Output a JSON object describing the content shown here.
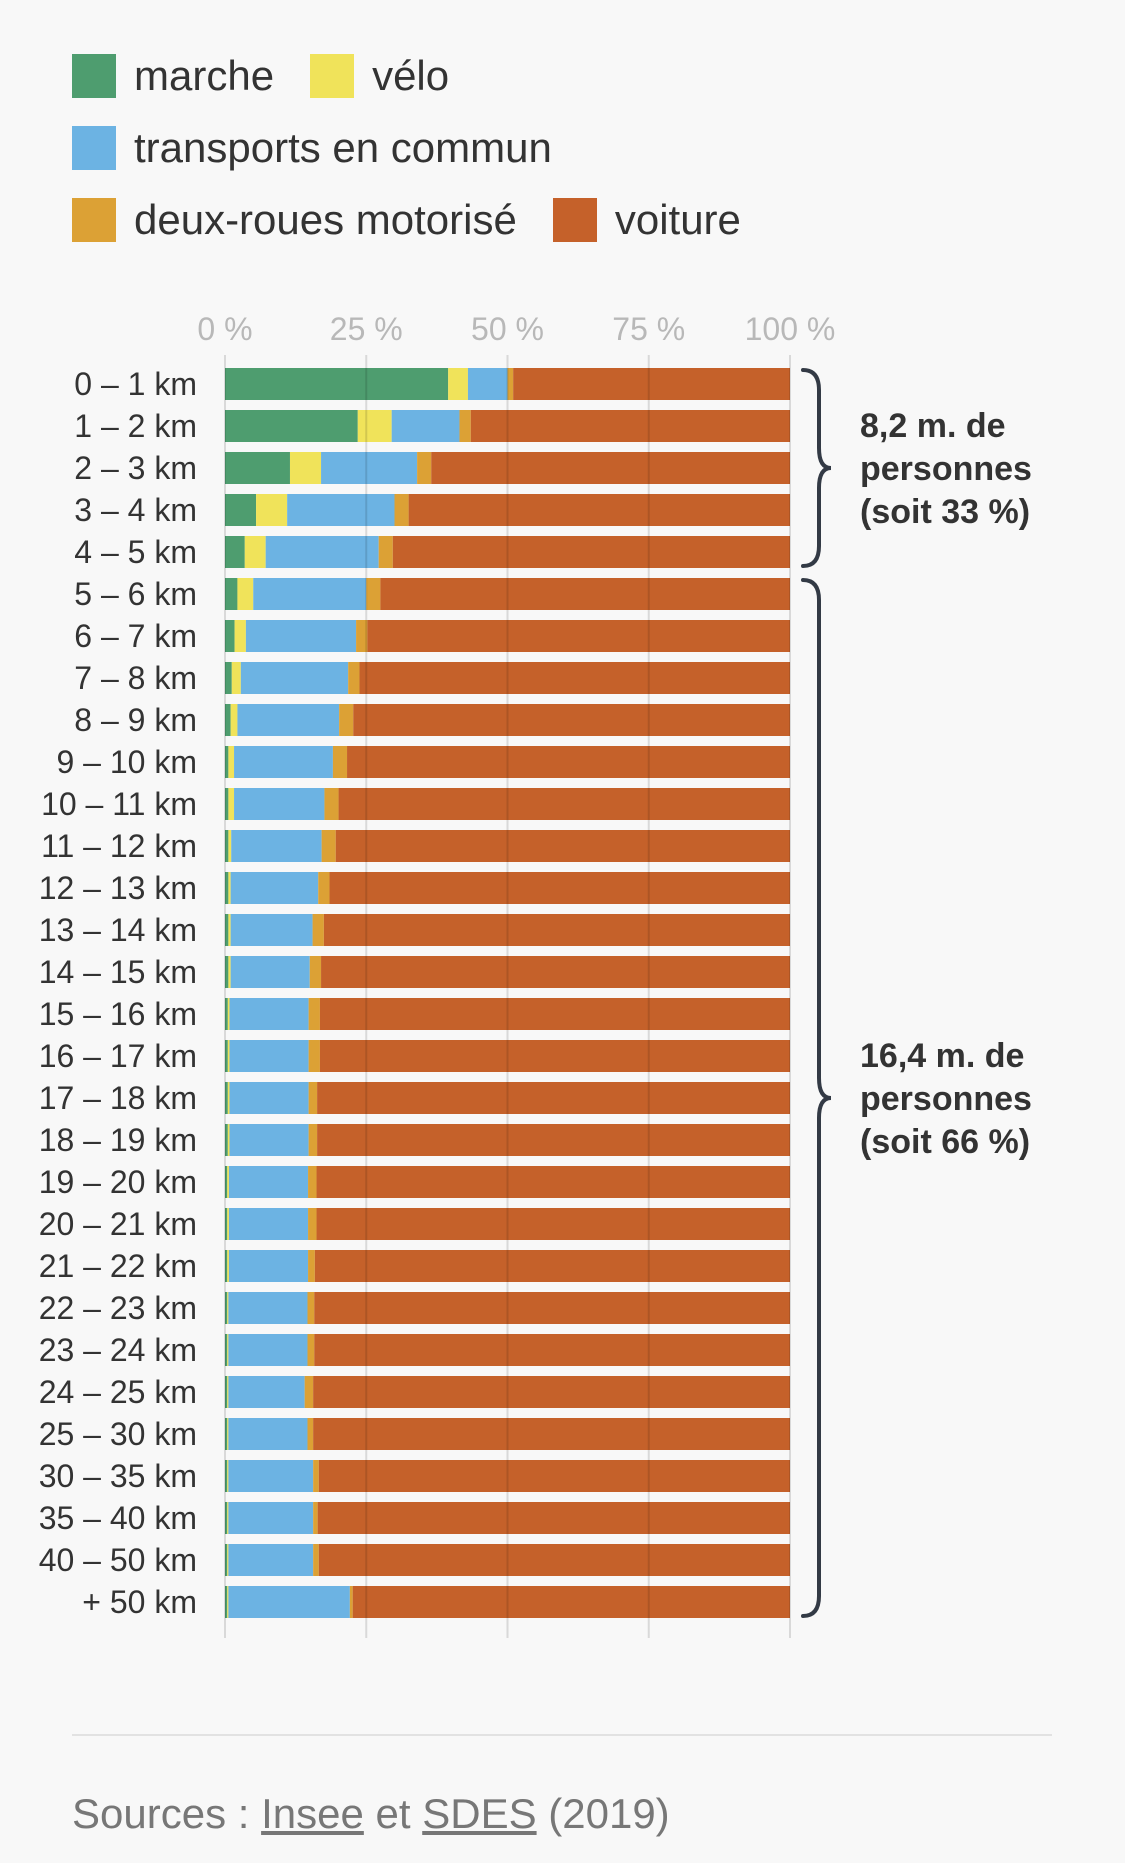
{
  "legend": [
    {
      "label": "marche",
      "color": "#4e9d6f"
    },
    {
      "label": "vélo",
      "color": "#f0e35a"
    },
    {
      "label": "transports en commun",
      "color": "#6cb3e3"
    },
    {
      "label": "deux-roues motorisé",
      "color": "#dca135"
    },
    {
      "label": "voiture",
      "color": "#c5612a"
    }
  ],
  "chart_data": {
    "type": "bar",
    "orientation": "horizontal",
    "stacked": true,
    "categories": [
      "0 – 1 km",
      "1 – 2 km",
      "2 – 3 km",
      "3 – 4 km",
      "4 – 5 km",
      "5 – 6 km",
      "6 – 7 km",
      "7 – 8 km",
      "8 – 9 km",
      "9 – 10 km",
      "10 – 11 km",
      "11 – 12 km",
      "12 – 13 km",
      "13 – 14 km",
      "14 – 15 km",
      "15 – 16 km",
      "16 – 17 km",
      "17 – 18 km",
      "18 – 19 km",
      "19 – 20 km",
      "20 – 21 km",
      "21 – 22 km",
      "22 – 23 km",
      "23 – 24 km",
      "24 – 25 km",
      "25 – 30 km",
      "30 – 35 km",
      "35 – 40 km",
      "40 – 50 km",
      "+ 50 km"
    ],
    "series": [
      {
        "name": "marche",
        "color": "#4e9d6f",
        "values": [
          39.5,
          23.5,
          11.5,
          5.5,
          3.5,
          2.2,
          1.7,
          1.2,
          1.0,
          0.6,
          0.6,
          0.6,
          0.6,
          0.6,
          0.6,
          0.5,
          0.5,
          0.5,
          0.5,
          0.4,
          0.4,
          0.4,
          0.4,
          0.4,
          0.4,
          0.4,
          0.4,
          0.4,
          0.4,
          0.4
        ]
      },
      {
        "name": "vélo",
        "color": "#f0e35a",
        "values": [
          3.5,
          6.0,
          5.5,
          5.5,
          3.7,
          2.8,
          2.0,
          1.6,
          1.2,
          1.0,
          1.0,
          0.5,
          0.4,
          0.4,
          0.4,
          0.3,
          0.3,
          0.3,
          0.3,
          0.3,
          0.3,
          0.3,
          0.2,
          0.2,
          0.2,
          0.2,
          0.2,
          0.2,
          0.2,
          0.2
        ]
      },
      {
        "name": "transports en commun",
        "color": "#6cb3e3",
        "values": [
          7.0,
          12.0,
          17.0,
          19.0,
          20.0,
          20.0,
          19.5,
          19.0,
          18.0,
          17.5,
          16.0,
          16.0,
          15.5,
          14.5,
          14.0,
          14.0,
          14.0,
          14.0,
          14.0,
          14.0,
          14.0,
          14.0,
          14.0,
          14.0,
          13.5,
          14.0,
          15.0,
          15.0,
          15.0,
          21.5
        ]
      },
      {
        "name": "deux-roues motorisé",
        "color": "#dca135",
        "values": [
          1.0,
          2.0,
          2.5,
          2.5,
          2.5,
          2.5,
          2.0,
          2.0,
          2.5,
          2.5,
          2.5,
          2.5,
          2.0,
          2.0,
          2.0,
          2.0,
          2.0,
          1.5,
          1.5,
          1.5,
          1.5,
          1.2,
          1.2,
          1.2,
          1.5,
          1.0,
          1.0,
          0.8,
          1.0,
          0.5
        ]
      },
      {
        "name": "voiture",
        "color": "#c5612a",
        "values": [
          49.0,
          56.5,
          63.5,
          67.5,
          70.3,
          72.5,
          74.8,
          76.2,
          77.3,
          78.4,
          79.9,
          80.4,
          81.5,
          82.5,
          83.0,
          83.2,
          83.2,
          83.7,
          83.7,
          83.8,
          83.8,
          84.1,
          84.2,
          84.2,
          84.4,
          84.4,
          83.4,
          83.6,
          83.4,
          77.4
        ]
      }
    ],
    "xlim": [
      0,
      100
    ],
    "x_ticks": [
      "0 %",
      "25 %",
      "50 %",
      "75 %",
      "100 %"
    ],
    "annotations": [
      {
        "lines": [
          "8,2 m. de",
          "personnes",
          "(soit 33 %)"
        ],
        "from_category": 0,
        "to_category": 4
      },
      {
        "lines": [
          "16,4 m. de",
          "personnes",
          "(soit 66 %)"
        ],
        "from_category": 5,
        "to_category": 29
      }
    ]
  },
  "source": {
    "prefix": "Sources : ",
    "link1": "Insee",
    "middle": " et ",
    "link2": "SDES",
    "suffix": " (2019)"
  }
}
